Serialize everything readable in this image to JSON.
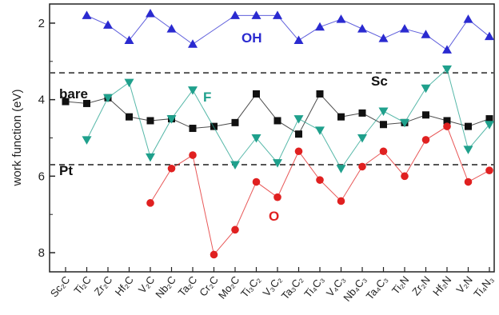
{
  "chart_data": {
    "type": "line",
    "title": "",
    "xlabel": "",
    "ylabel": "work function (eV)",
    "ylim": [
      8.5,
      1.5
    ],
    "y_inverted": true,
    "yticks": [
      "2",
      "4",
      "6",
      "8"
    ],
    "grid": false,
    "categories": [
      "Sc2C",
      "Ti2C",
      "Zr2C",
      "Hf2C",
      "V2C",
      "Nb2C",
      "Ta2C",
      "Cr2C",
      "Mo2C",
      "Ti3C2",
      "V3C2",
      "Ta3C2",
      "Ti4C3",
      "V4C3",
      "Nb4C3",
      "Ta4C3",
      "Ti2N",
      "Zr2N",
      "Hf2N",
      "V2N",
      "Ti4N3"
    ],
    "category_labels": [
      "Sc₂C",
      "Ti₂C",
      "Zr₂C",
      "Hf₂C",
      "V₂C",
      "Nb₂C",
      "Ta₂C",
      "Cr₂C",
      "Mo₂C",
      "Ti₃C₂",
      "V₃C₂",
      "Ta₃C₂",
      "Ti₄C₃",
      "V₄C₃",
      "Nb₄C₃",
      "Ta₄C₃",
      "Ti₂N",
      "Zr₂N",
      "Hf₂N",
      "V₂N",
      "Ti₄N₃"
    ],
    "series": [
      {
        "name": "OH",
        "color": "#2a2ad0",
        "marker": "triangle-up",
        "values": [
          null,
          1.8,
          2.05,
          2.45,
          1.75,
          2.15,
          2.55,
          null,
          1.8,
          1.8,
          1.8,
          2.45,
          2.1,
          1.9,
          2.15,
          2.4,
          2.15,
          2.3,
          2.7,
          1.9,
          2.35
        ]
      },
      {
        "name": "bare",
        "color": "#111111",
        "marker": "square",
        "values": [
          4.05,
          4.1,
          3.95,
          4.45,
          4.55,
          4.5,
          4.75,
          4.7,
          4.6,
          3.85,
          4.55,
          4.9,
          3.85,
          4.45,
          4.35,
          4.65,
          4.6,
          4.4,
          4.55,
          4.7,
          4.5
        ]
      },
      {
        "name": "F",
        "color": "#1fa08c",
        "marker": "triangle-down",
        "values": [
          null,
          5.05,
          3.95,
          3.55,
          5.5,
          4.5,
          3.75,
          null,
          5.7,
          5.0,
          5.65,
          4.5,
          4.8,
          5.8,
          5.0,
          4.3,
          4.6,
          3.7,
          3.2,
          5.3,
          4.65
        ]
      },
      {
        "name": "O",
        "color": "#e02020",
        "marker": "circle",
        "values": [
          null,
          null,
          null,
          null,
          6.7,
          5.8,
          5.45,
          8.05,
          7.4,
          6.15,
          6.55,
          5.35,
          6.1,
          6.65,
          5.75,
          5.35,
          6.0,
          5.05,
          4.7,
          6.15,
          5.85
        ]
      }
    ],
    "reference_lines": [
      {
        "name": "Sc",
        "value": 3.3
      },
      {
        "name": "Pt",
        "value": 5.7
      }
    ]
  }
}
